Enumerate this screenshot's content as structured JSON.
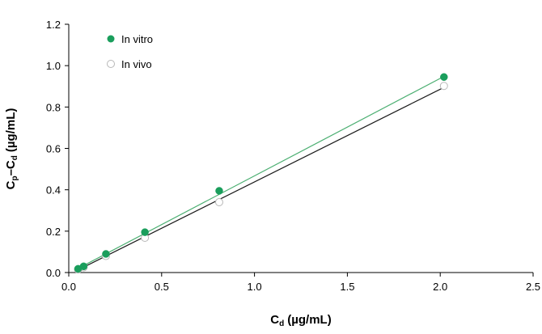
{
  "chart_data": {
    "type": "scatter",
    "xlabel_main": "C",
    "xlabel_sub": "d",
    "xlabel_rest": "(µg/mL)",
    "ylabel_c1": "C",
    "ylabel_sub1": "p",
    "ylabel_mid": "–C",
    "ylabel_sub2": "d",
    "ylabel_rest": "(µg/mL)",
    "xlim": [
      0,
      2.5
    ],
    "ylim": [
      0,
      1.2
    ],
    "xticks": [
      "0.0",
      "0.5",
      "1.0",
      "1.5",
      "2.0",
      "2.5"
    ],
    "yticks": [
      "0.0",
      "0.2",
      "0.4",
      "0.6",
      "0.8",
      "1.0",
      "1.2"
    ],
    "grid": false,
    "legend_position": "top-left",
    "series": [
      {
        "name": "In vitro",
        "marker": "filled-circle",
        "color": "#1a9e5c",
        "line_color": "#4caf72",
        "x": [
          0.05,
          0.08,
          0.2,
          0.41,
          0.81,
          2.02
        ],
        "y": [
          0.018,
          0.03,
          0.09,
          0.195,
          0.395,
          0.945
        ],
        "fit": {
          "x": [
            0.04,
            2.02
          ],
          "y": [
            0.015,
            0.948
          ]
        }
      },
      {
        "name": "In vivo",
        "marker": "open-circle",
        "color": "#b8b8b8",
        "line_color": "#1a1a1a",
        "x": [
          0.05,
          0.08,
          0.2,
          0.41,
          0.81,
          2.02
        ],
        "y": [
          0.015,
          0.025,
          0.08,
          0.168,
          0.34,
          0.902
        ],
        "fit": {
          "x": [
            0.04,
            2.02
          ],
          "y": [
            0.008,
            0.895
          ]
        }
      }
    ]
  }
}
